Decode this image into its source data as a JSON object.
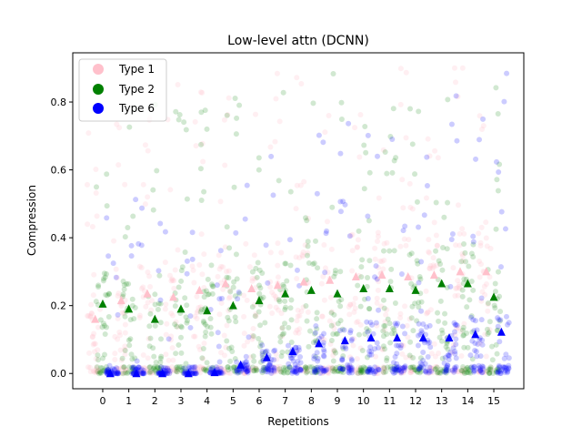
{
  "chart_data": {
    "type": "scatter",
    "title": "Low-level attn (DCNN)",
    "xlabel": "Repetitions",
    "ylabel": "Compression",
    "xlim": [
      -1.15,
      16.15
    ],
    "ylim": [
      -0.045,
      0.945
    ],
    "x_ticks": [
      "0",
      "1",
      "2",
      "3",
      "4",
      "5",
      "6",
      "7",
      "8",
      "9",
      "10",
      "11",
      "12",
      "13",
      "14",
      "15"
    ],
    "y_ticks": [
      "0.0",
      "0.2",
      "0.4",
      "0.6",
      "0.8"
    ],
    "legend_placement": "top-left",
    "grid": false,
    "series": [
      {
        "name": "Type 1",
        "color": "#ffc0cb",
        "marker": "circle",
        "means": [
          0.16,
          0.215,
          0.235,
          0.225,
          0.245,
          0.265,
          0.25,
          0.26,
          0.27,
          0.275,
          0.285,
          0.29,
          0.285,
          0.29,
          0.3,
          0.3
        ]
      },
      {
        "name": "Type 2",
        "color": "#008000",
        "marker": "circle",
        "means": [
          0.205,
          0.19,
          0.16,
          0.19,
          0.185,
          0.2,
          0.215,
          0.235,
          0.245,
          0.235,
          0.25,
          0.25,
          0.245,
          0.265,
          0.265,
          0.225
        ]
      },
      {
        "name": "Type 6",
        "color": "#0000ff",
        "marker": "circle",
        "means": [
          0.0,
          0.0,
          0.0,
          0.0,
          0.003,
          0.025,
          0.047,
          0.065,
          0.088,
          0.097,
          0.105,
          0.105,
          0.105,
          0.105,
          0.115,
          0.122
        ]
      }
    ]
  }
}
